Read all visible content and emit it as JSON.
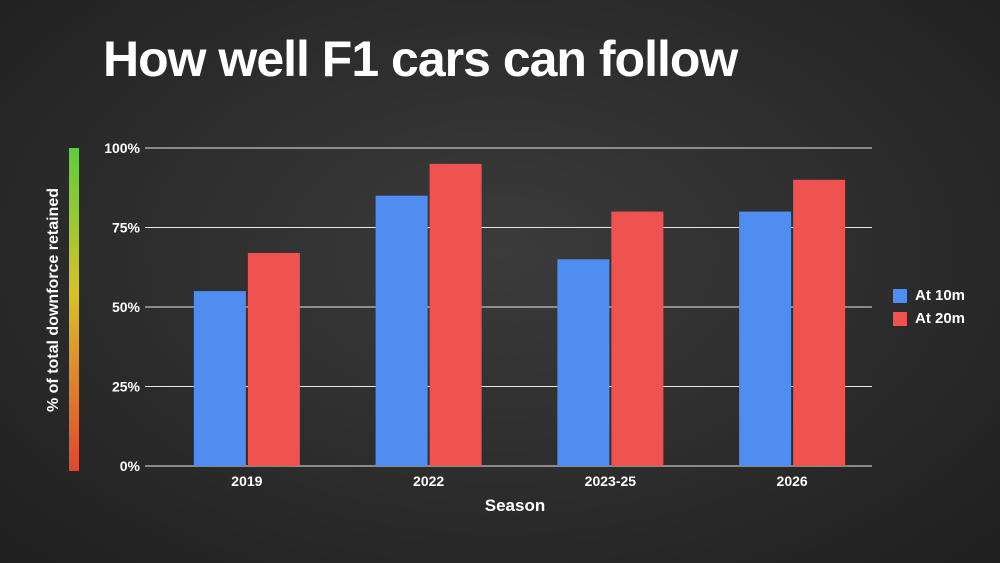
{
  "title": "How well F1 cars can follow",
  "colors": {
    "series_10m": "#4f8ef0",
    "series_20m": "#ef5350",
    "grid": "#e6e6e6",
    "text": "#ffffff"
  },
  "chart_data": {
    "type": "bar",
    "categories": [
      "2019",
      "2022",
      "2023-25",
      "2026"
    ],
    "series": [
      {
        "name": "At 10m",
        "values": [
          55,
          85,
          65,
          80
        ]
      },
      {
        "name": "At 20m",
        "values": [
          67,
          95,
          80,
          90
        ]
      }
    ],
    "xlabel": "Season",
    "ylabel": "% of total downforce retained",
    "ylim": [
      0,
      100
    ],
    "yticks": [
      "0%",
      "25%",
      "50%",
      "75%",
      "100%"
    ],
    "grid": true,
    "legend_position": "right"
  }
}
